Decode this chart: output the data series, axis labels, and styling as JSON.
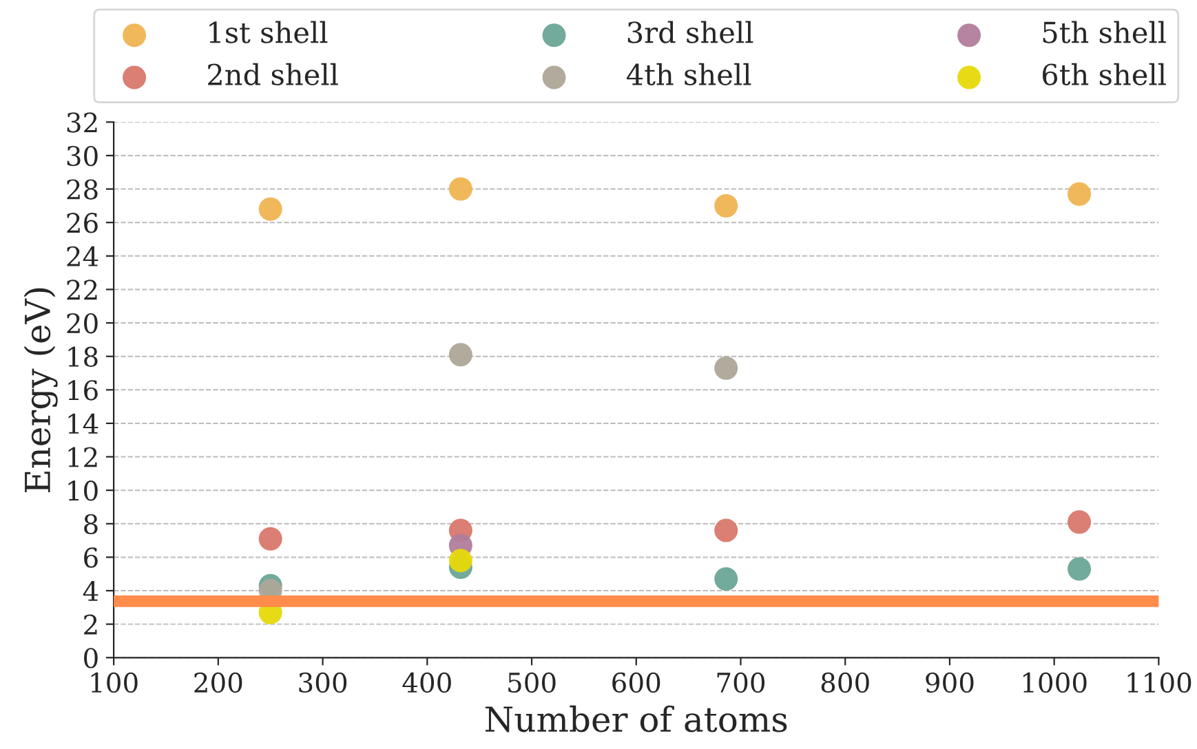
{
  "chart_data": {
    "type": "scatter",
    "xlabel": "Number of atoms",
    "ylabel": "Energy (eV)",
    "xlim": [
      100,
      1100
    ],
    "xticks": [
      100,
      200,
      300,
      400,
      500,
      600,
      700,
      800,
      900,
      1000,
      1100
    ],
    "ylim": [
      0,
      32
    ],
    "yticks": [
      0,
      2,
      4,
      6,
      8,
      10,
      12,
      14,
      16,
      18,
      20,
      22,
      24,
      26,
      28,
      30,
      32
    ],
    "grid": "y",
    "legend": "top",
    "marker": "circle",
    "series": [
      {
        "name": "1st shell",
        "color": "#f0b452",
        "x": [
          250,
          432,
          686,
          1024
        ],
        "values": [
          26.8,
          28.0,
          27.0,
          27.7
        ]
      },
      {
        "name": "2nd shell",
        "color": "#d9776b",
        "x": [
          250,
          432,
          686,
          1024
        ],
        "values": [
          7.1,
          7.6,
          7.6,
          8.1
        ]
      },
      {
        "name": "3rd shell",
        "color": "#6aa597",
        "x": [
          250,
          432,
          686,
          1024
        ],
        "values": [
          4.3,
          5.4,
          4.7,
          5.3
        ]
      },
      {
        "name": "4th shell",
        "color": "#aea698",
        "x": [
          250,
          432,
          686
        ],
        "values": [
          4.0,
          18.1,
          17.3
        ]
      },
      {
        "name": "5th shell",
        "color": "#b07d9b",
        "x": [
          432
        ],
        "values": [
          6.7
        ]
      },
      {
        "name": "6th shell",
        "color": "#e6d90a",
        "x": [
          250,
          432
        ],
        "values": [
          2.7,
          5.8
        ]
      }
    ],
    "ref_lines": [
      {
        "axis": "y",
        "value": 3.37,
        "color": "#ff8c4a"
      }
    ]
  }
}
